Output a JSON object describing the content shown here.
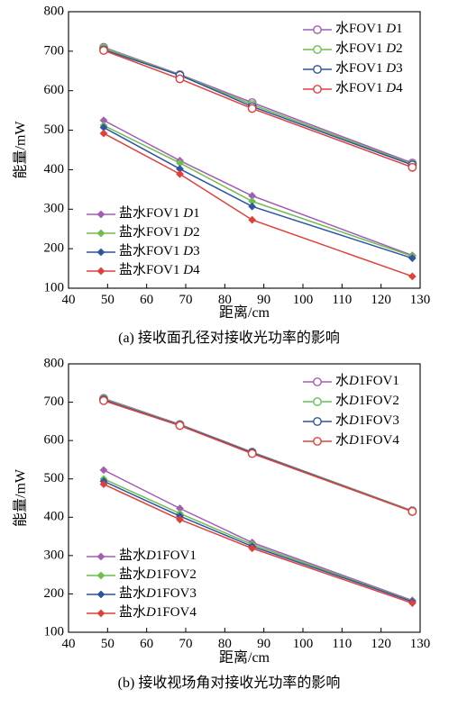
{
  "chart_data": [
    {
      "type": "line",
      "caption": "(a) 接收面孔径对接收光功率的影响",
      "xlabel": "距离/cm",
      "ylabel": "能量/mW",
      "xlim": [
        40,
        130
      ],
      "ylim": [
        100,
        800
      ],
      "xticks": [
        40,
        50,
        60,
        70,
        80,
        90,
        100,
        110,
        120,
        130
      ],
      "yticks": [
        100,
        200,
        300,
        400,
        500,
        600,
        700,
        800
      ],
      "x": [
        49,
        68.5,
        87,
        128
      ],
      "legends": [
        {
          "position": "top-right",
          "entries": [
            0,
            1,
            2,
            3
          ]
        },
        {
          "position": "bottom-left",
          "entries": [
            4,
            5,
            6,
            7
          ]
        }
      ],
      "series": [
        {
          "name_prefix": "水FOV1 ",
          "name_italic": "D",
          "name_suffix": "1",
          "marker": "circle",
          "color": "#a35db5",
          "values": [
            710,
            641,
            570,
            417
          ]
        },
        {
          "name_prefix": "水FOV1 ",
          "name_italic": "D",
          "name_suffix": "2",
          "marker": "circle",
          "color": "#6cbf4e",
          "values": [
            708,
            640,
            565,
            414
          ]
        },
        {
          "name_prefix": "水FOV1 ",
          "name_italic": "D",
          "name_suffix": "3",
          "marker": "circle",
          "color": "#2f54a3",
          "values": [
            704,
            639,
            560,
            412
          ]
        },
        {
          "name_prefix": "水FOV1 ",
          "name_italic": "D",
          "name_suffix": "4",
          "marker": "circle",
          "color": "#e0403a",
          "values": [
            702,
            630,
            555,
            406
          ]
        },
        {
          "name_prefix": "盐水FOV1 ",
          "name_italic": "D",
          "name_suffix": "1",
          "marker": "diamond",
          "color": "#a35db5",
          "values": [
            525,
            423,
            334,
            183
          ]
        },
        {
          "name_prefix": "盐水FOV1 ",
          "name_italic": "D",
          "name_suffix": "2",
          "marker": "diamond",
          "color": "#6cbf4e",
          "values": [
            512,
            417,
            320,
            181
          ]
        },
        {
          "name_prefix": "盐水FOV1 ",
          "name_italic": "D",
          "name_suffix": "3",
          "marker": "diamond",
          "color": "#2f54a3",
          "values": [
            507,
            402,
            307,
            176
          ]
        },
        {
          "name_prefix": "盐水FOV1 ",
          "name_italic": "D",
          "name_suffix": "4",
          "marker": "diamond",
          "color": "#e0403a",
          "values": [
            492,
            389,
            273,
            130
          ]
        }
      ]
    },
    {
      "type": "line",
      "caption": "(b) 接收视场角对接收光功率的影响",
      "xlabel": "距离/cm",
      "ylabel": "能量/mW",
      "xlim": [
        40,
        130
      ],
      "ylim": [
        100,
        800
      ],
      "xticks": [
        40,
        50,
        60,
        70,
        80,
        90,
        100,
        110,
        120,
        130
      ],
      "yticks": [
        100,
        200,
        300,
        400,
        500,
        600,
        700,
        800
      ],
      "x": [
        49,
        68.5,
        87,
        128
      ],
      "legends": [
        {
          "position": "top-right",
          "entries": [
            0,
            1,
            2,
            3
          ]
        },
        {
          "position": "bottom-left",
          "entries": [
            4,
            5,
            6,
            7
          ]
        }
      ],
      "series": [
        {
          "name_prefix": "水",
          "name_italic": "D",
          "name_suffix": "1FOV1",
          "marker": "circle",
          "color": "#a35db5",
          "values": [
            710,
            642,
            570,
            417
          ]
        },
        {
          "name_prefix": "水",
          "name_italic": "D",
          "name_suffix": "1FOV2",
          "marker": "circle",
          "color": "#6cbf4e",
          "values": [
            708,
            641,
            569,
            416
          ]
        },
        {
          "name_prefix": "水",
          "name_italic": "D",
          "name_suffix": "1FOV3",
          "marker": "circle",
          "color": "#2f54a3",
          "values": [
            706,
            640,
            568,
            415
          ]
        },
        {
          "name_prefix": "水",
          "name_italic": "D",
          "name_suffix": "1FOV4",
          "marker": "circle",
          "color": "#e0403a",
          "values": [
            704,
            639,
            566,
            415
          ]
        },
        {
          "name_prefix": "盐水",
          "name_italic": "D",
          "name_suffix": "1FOV1",
          "marker": "diamond",
          "color": "#a35db5",
          "values": [
            523,
            423,
            334,
            183
          ]
        },
        {
          "name_prefix": "盐水",
          "name_italic": "D",
          "name_suffix": "1FOV2",
          "marker": "diamond",
          "color": "#6cbf4e",
          "values": [
            500,
            410,
            329,
            181
          ]
        },
        {
          "name_prefix": "盐水",
          "name_italic": "D",
          "name_suffix": "1FOV3",
          "marker": "diamond",
          "color": "#2f54a3",
          "values": [
            494,
            403,
            324,
            180
          ]
        },
        {
          "name_prefix": "盐水",
          "name_italic": "D",
          "name_suffix": "1FOV4",
          "marker": "diamond",
          "color": "#e0403a",
          "values": [
            486,
            394,
            319,
            176
          ]
        }
      ]
    }
  ]
}
